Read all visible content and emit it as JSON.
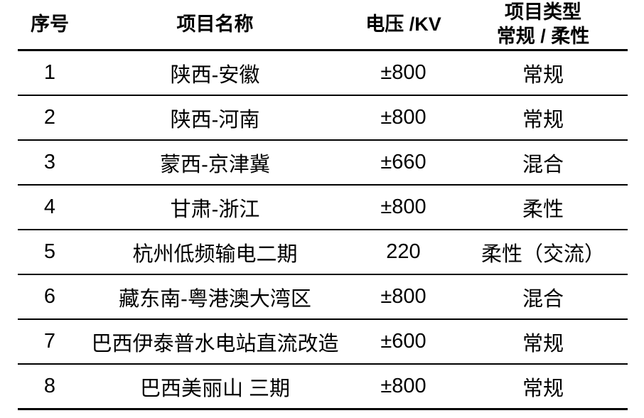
{
  "table": {
    "colors": {
      "text": "#000000",
      "border": "#000000",
      "background": "#ffffff"
    },
    "columns": {
      "index": {
        "label": "序号"
      },
      "name": {
        "label": "项目名称"
      },
      "voltage": {
        "label": "电压 /KV"
      },
      "type": {
        "label_line1": "项目类型",
        "label_line2": "常规 / 柔性"
      }
    },
    "rows": [
      {
        "index": "1",
        "name": "陕西-安徽",
        "voltage": "±800",
        "type": "常规"
      },
      {
        "index": "2",
        "name": "陕西-河南",
        "voltage": "±800",
        "type": "常规"
      },
      {
        "index": "3",
        "name": "蒙西-京津冀",
        "voltage": "±660",
        "type": "混合"
      },
      {
        "index": "4",
        "name": "甘肃-浙江",
        "voltage": "±800",
        "type": "柔性"
      },
      {
        "index": "5",
        "name": "杭州低频输电二期",
        "voltage": "220",
        "type": "柔性（交流）"
      },
      {
        "index": "6",
        "name": "藏东南-粤港澳大湾区",
        "voltage": "±800",
        "type": "混合"
      },
      {
        "index": "7",
        "name": "巴西伊泰普水电站直流改造",
        "voltage": "±600",
        "type": "常规"
      },
      {
        "index": "8",
        "name": "巴西美丽山 三期",
        "voltage": "±800",
        "type": "常规"
      }
    ]
  }
}
